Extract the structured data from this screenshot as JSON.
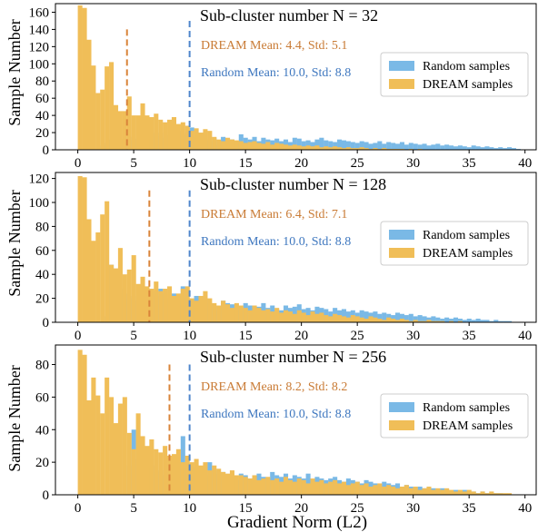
{
  "figure": {
    "xlabel": "Gradient Norm (L2)",
    "ylabel": "Sample Number",
    "colors": {
      "random": "#7ab9e6",
      "dream": "#f0be58",
      "dream_line": "#d9843a",
      "random_line": "#4f86cc",
      "dream_text": "#c97b35",
      "random_text": "#3e77bf"
    }
  },
  "chart_data": [
    {
      "type": "bar",
      "title": "Sub-cluster number N = 32",
      "xlim": [
        -2,
        41
      ],
      "ylim": [
        0,
        170
      ],
      "xticks": [
        0,
        5,
        10,
        15,
        20,
        25,
        30,
        35,
        40
      ],
      "yticks": [
        0,
        20,
        40,
        60,
        80,
        100,
        120,
        140,
        160
      ],
      "legend": {
        "placement": "right",
        "entries": [
          "Random samples",
          "DREAM samples"
        ]
      },
      "bin_width": 0.4,
      "series": [
        {
          "name": "Random samples",
          "values": [
            0,
            0,
            0,
            0,
            0,
            5,
            8,
            12,
            14,
            12,
            10,
            15,
            11,
            13,
            18,
            12,
            20,
            16,
            20,
            14,
            17,
            18,
            22,
            18,
            20,
            26,
            15,
            12,
            12,
            10,
            14,
            5,
            15,
            10,
            12,
            10,
            18,
            14,
            12,
            15,
            10,
            14,
            12,
            11,
            13,
            10,
            12,
            9,
            14,
            13,
            10,
            11,
            9,
            12,
            14,
            11,
            10,
            9,
            12,
            11,
            10,
            9,
            8,
            10,
            9,
            7,
            8,
            10,
            7,
            9,
            8,
            7,
            9,
            6,
            8,
            7,
            6,
            7,
            5,
            6,
            7,
            5,
            6,
            5,
            4,
            5,
            4,
            3,
            5,
            4,
            3,
            4,
            3,
            2,
            3,
            2,
            3,
            2,
            1,
            0
          ]
        },
        {
          "name": "DREAM samples",
          "values": [
            168,
            165,
            128,
            98,
            66,
            70,
            97,
            102,
            52,
            45,
            45,
            62,
            40,
            40,
            54,
            40,
            38,
            42,
            35,
            32,
            35,
            38,
            30,
            32,
            28,
            22,
            25,
            20,
            24,
            22,
            15,
            12,
            10,
            14,
            12,
            11,
            10,
            8,
            9,
            10,
            8,
            7,
            9,
            6,
            8,
            7,
            6,
            5,
            6,
            5,
            4,
            5,
            4,
            5,
            3,
            4,
            3,
            4,
            3,
            2,
            3,
            2,
            2,
            3,
            2,
            1,
            2,
            1,
            2,
            1,
            1,
            1,
            1,
            0,
            1,
            0,
            1,
            0,
            0,
            0,
            0,
            0,
            0,
            0,
            0,
            0,
            0,
            0,
            0,
            0,
            0,
            0,
            0,
            0,
            0,
            0,
            0,
            0,
            0,
            0
          ]
        }
      ],
      "annotations": [
        {
          "text": "DREAM Mean: 4.4, Std: 5.1",
          "series": "DREAM samples",
          "mean_x": 4.4,
          "line_top": 140
        },
        {
          "text": "Random Mean: 10.0, Std: 8.8",
          "series": "Random samples",
          "mean_x": 10.0,
          "line_top": 150
        }
      ]
    },
    {
      "type": "bar",
      "title": "Sub-cluster number N = 128",
      "xlim": [
        -2,
        41
      ],
      "ylim": [
        0,
        125
      ],
      "xticks": [
        0,
        5,
        10,
        15,
        20,
        25,
        30,
        35,
        40
      ],
      "yticks": [
        0,
        20,
        40,
        60,
        80,
        100,
        120
      ],
      "legend": {
        "placement": "right",
        "entries": [
          "Random samples",
          "DREAM samples"
        ]
      },
      "bin_width": 0.4,
      "series": [
        {
          "name": "Random samples",
          "values": [
            0,
            0,
            0,
            0,
            0,
            0,
            5,
            48,
            30,
            28,
            24,
            20,
            22,
            18,
            25,
            20,
            26,
            22,
            28,
            24,
            20,
            24,
            22,
            30,
            20,
            18,
            22,
            15,
            20,
            16,
            14,
            10,
            18,
            16,
            15,
            14,
            12,
            16,
            14,
            12,
            13,
            16,
            12,
            14,
            11,
            10,
            14,
            12,
            13,
            15,
            11,
            12,
            10,
            13,
            12,
            11,
            9,
            12,
            10,
            11,
            9,
            10,
            8,
            10,
            9,
            8,
            9,
            7,
            8,
            7,
            6,
            8,
            7,
            6,
            7,
            5,
            6,
            5,
            4,
            5,
            4,
            3,
            4,
            3,
            4,
            3,
            2,
            3,
            2,
            3,
            2,
            2,
            1,
            2,
            1,
            1,
            1,
            0,
            0,
            0
          ]
        },
        {
          "name": "DREAM samples",
          "values": [
            122,
            121,
            86,
            68,
            75,
            90,
            101,
            48,
            45,
            62,
            40,
            44,
            56,
            32,
            38,
            30,
            28,
            34,
            26,
            28,
            30,
            22,
            24,
            28,
            30,
            20,
            18,
            22,
            26,
            20,
            16,
            14,
            18,
            15,
            12,
            16,
            14,
            12,
            10,
            14,
            12,
            10,
            11,
            9,
            12,
            8,
            10,
            9,
            7,
            10,
            8,
            6,
            9,
            7,
            8,
            6,
            5,
            7,
            6,
            5,
            4,
            6,
            5,
            4,
            3,
            5,
            4,
            3,
            2,
            4,
            3,
            2,
            3,
            2,
            1,
            2,
            1,
            1,
            2,
            1,
            1,
            1,
            0,
            1,
            0,
            1,
            0,
            0,
            0,
            0,
            0,
            0,
            0,
            0,
            0,
            0,
            0,
            0,
            0,
            0
          ]
        }
      ],
      "annotations": [
        {
          "text": "DREAM Mean: 6.4, Std: 7.1",
          "series": "DREAM samples",
          "mean_x": 6.4,
          "line_top": 110
        },
        {
          "text": "Random Mean: 10.0, Std: 8.8",
          "series": "Random samples",
          "mean_x": 10.0,
          "line_top": 110
        }
      ]
    },
    {
      "type": "bar",
      "title": "Sub-cluster number N = 256",
      "xlim": [
        -2,
        41
      ],
      "ylim": [
        0,
        92
      ],
      "xticks": [
        0,
        5,
        10,
        15,
        20,
        25,
        30,
        35,
        40
      ],
      "yticks": [
        0,
        20,
        40,
        60,
        80
      ],
      "legend": {
        "placement": "right",
        "entries": [
          "Random samples",
          "DREAM samples"
        ]
      },
      "bin_width": 0.4,
      "series": [
        {
          "name": "Random samples",
          "values": [
            0,
            0,
            0,
            0,
            0,
            0,
            0,
            0,
            0,
            0,
            0,
            18,
            40,
            22,
            20,
            16,
            18,
            14,
            15,
            12,
            14,
            17,
            20,
            36,
            16,
            15,
            17,
            14,
            12,
            20,
            15,
            13,
            14,
            12,
            13,
            9,
            13,
            12,
            10,
            12,
            13,
            11,
            10,
            14,
            12,
            11,
            13,
            10,
            12,
            11,
            10,
            13,
            9,
            11,
            10,
            9,
            10,
            11,
            9,
            8,
            10,
            9,
            8,
            7,
            9,
            8,
            7,
            6,
            8,
            7,
            6,
            7,
            5,
            6,
            5,
            4,
            5,
            4,
            3,
            4,
            3,
            4,
            3,
            2,
            3,
            2,
            3,
            2,
            2,
            1,
            2,
            1,
            1,
            1,
            1,
            0,
            0,
            0,
            0,
            0
          ]
        },
        {
          "name": "DREAM samples",
          "values": [
            89,
            86,
            58,
            72,
            61,
            50,
            72,
            60,
            44,
            56,
            60,
            38,
            28,
            50,
            36,
            30,
            34,
            28,
            26,
            30,
            24,
            25,
            28,
            20,
            24,
            20,
            22,
            18,
            20,
            15,
            18,
            16,
            14,
            13,
            15,
            12,
            12,
            11,
            10,
            12,
            9,
            10,
            11,
            9,
            10,
            8,
            11,
            9,
            8,
            10,
            9,
            7,
            10,
            8,
            9,
            7,
            8,
            9,
            7,
            8,
            6,
            7,
            8,
            6,
            7,
            5,
            6,
            7,
            5,
            6,
            5,
            4,
            5,
            6,
            4,
            5,
            3,
            4,
            5,
            3,
            4,
            3,
            4,
            3,
            2,
            3,
            2,
            3,
            2,
            1,
            2,
            1,
            2,
            1,
            1,
            1,
            1,
            0,
            0,
            0
          ]
        }
      ],
      "annotations": [
        {
          "text": "DREAM Mean: 8.2, Std: 8.2",
          "series": "DREAM samples",
          "mean_x": 8.2,
          "line_top": 80
        },
        {
          "text": "Random Mean: 10.0, Std: 8.8",
          "series": "Random samples",
          "mean_x": 10.0,
          "line_top": 80
        }
      ]
    }
  ]
}
